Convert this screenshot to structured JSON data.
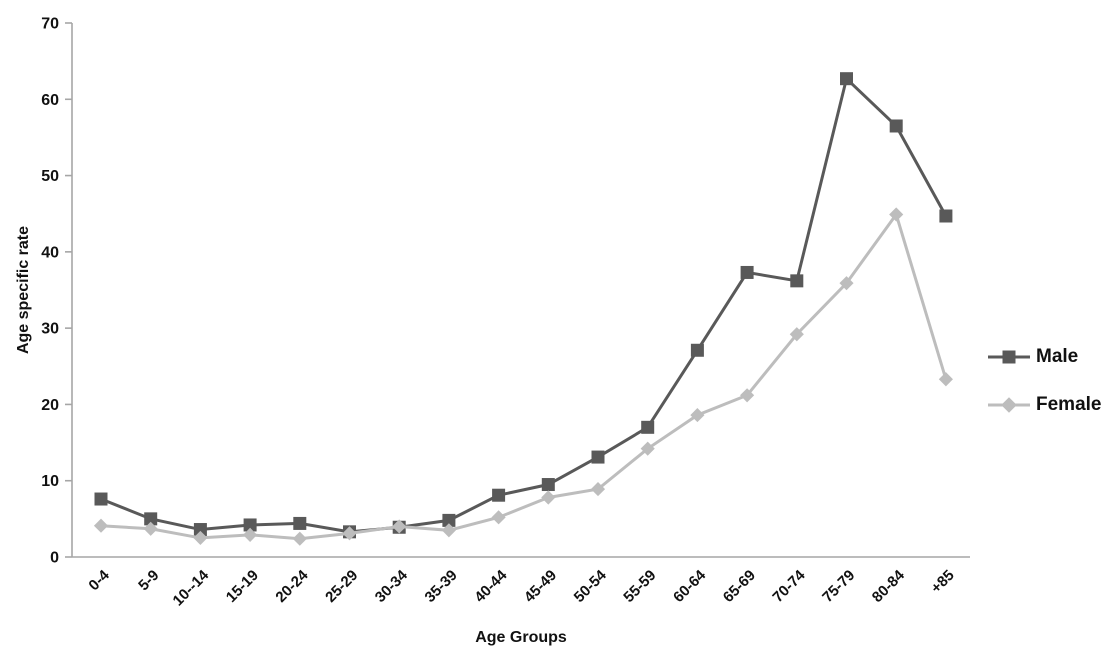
{
  "chart_data": {
    "type": "line",
    "title": "",
    "xlabel": "Age Groups",
    "ylabel": "Age specific rate",
    "categories": [
      "0-4",
      "5-9",
      "10--14",
      "15-19",
      "20-24",
      "25-29",
      "30-34",
      "35-39",
      "40-44",
      "45-49",
      "50-54",
      "55-59",
      "60-64",
      "65-69",
      "70-74",
      "75-79",
      "80-84",
      "+85"
    ],
    "series": [
      {
        "name": "Male",
        "marker": "square",
        "color": "#595959",
        "values": [
          7.6,
          5.0,
          3.6,
          4.2,
          4.4,
          3.3,
          3.9,
          4.8,
          8.1,
          9.5,
          13.1,
          17.0,
          27.1,
          37.3,
          36.2,
          62.7,
          56.5,
          44.7
        ]
      },
      {
        "name": "Female",
        "marker": "diamond",
        "color": "#bdbdbd",
        "values": [
          4.1,
          3.7,
          2.5,
          2.9,
          2.4,
          3.1,
          4.0,
          3.5,
          5.2,
          7.8,
          8.9,
          14.2,
          18.6,
          21.2,
          29.2,
          35.9,
          44.9,
          23.3
        ]
      }
    ],
    "ylim": [
      0,
      70
    ],
    "yticks": [
      0,
      10,
      20,
      30,
      40,
      50,
      60,
      70
    ],
    "grid": "off",
    "legend_position": "right",
    "axis_color": "#a6a6a6",
    "text_color": "#111111",
    "background_color": "#ffffff"
  }
}
